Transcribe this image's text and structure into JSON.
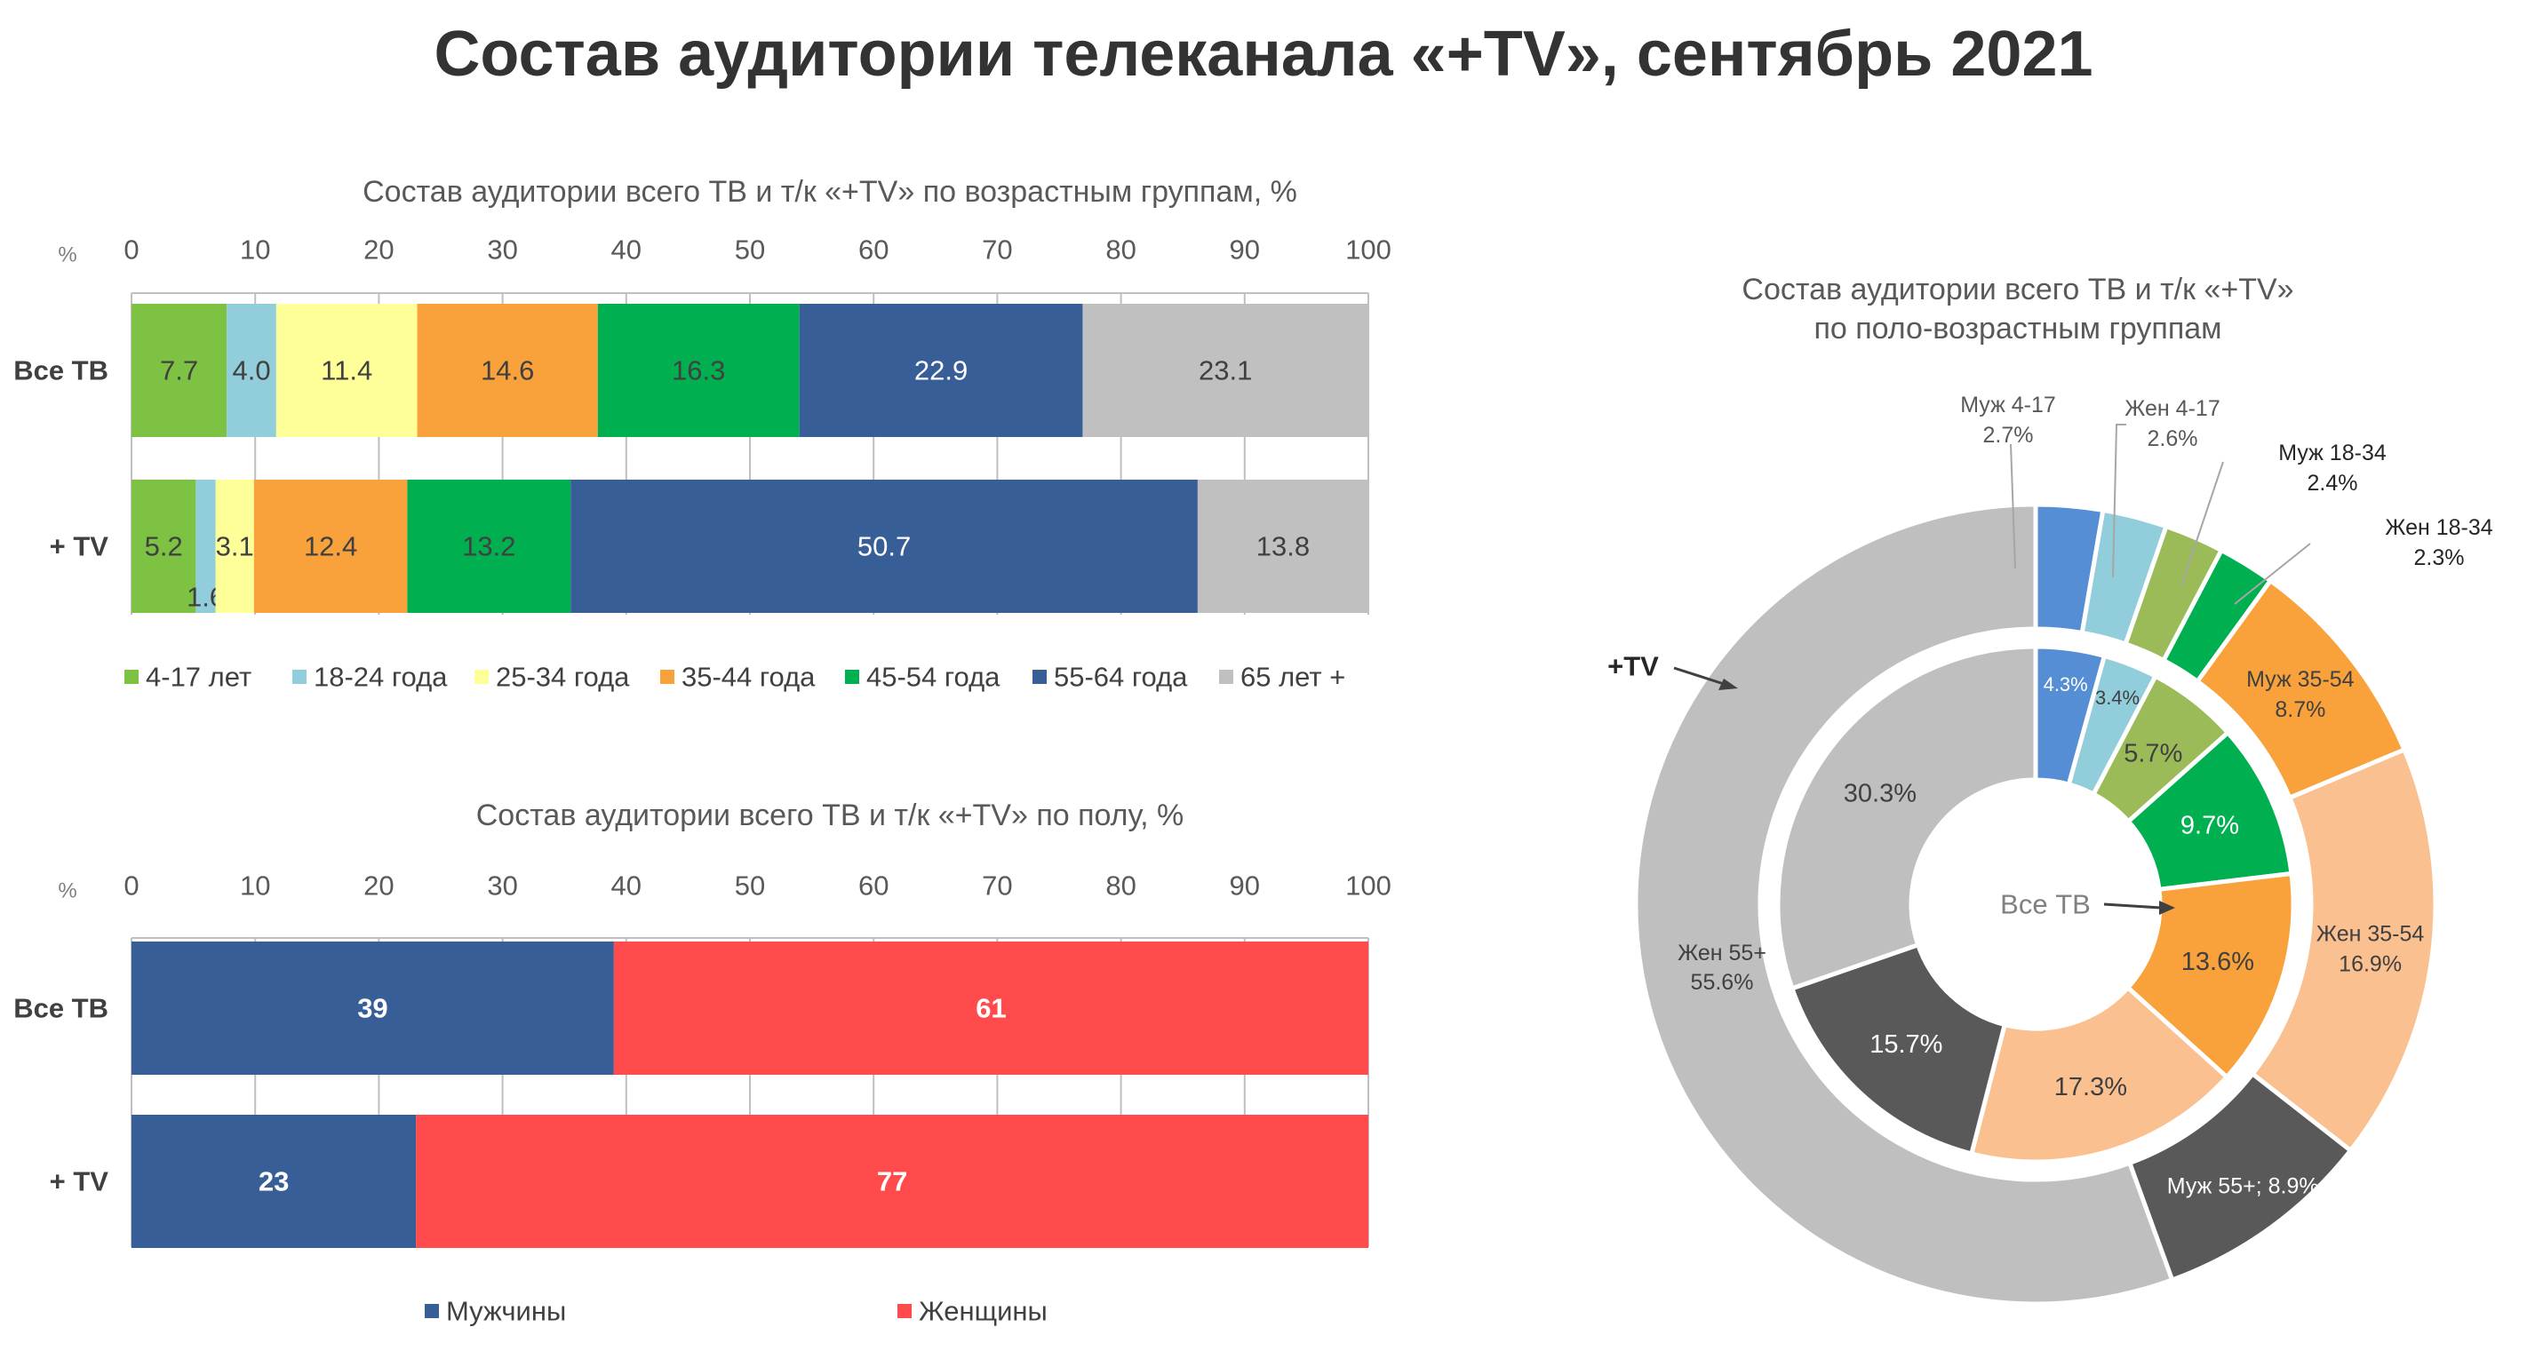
{
  "title": "Состав аудитории телеканала «+TV», сентябрь 2021",
  "chart_data": [
    {
      "type": "bar",
      "orientation": "horizontal-stacked",
      "title": "Состав аудитории всего ТВ и т/к «+TV» по возрастным группам, %",
      "axis_unit_label": "%",
      "xlim": [
        0,
        100
      ],
      "ticks": [
        "0",
        "10",
        "20",
        "30",
        "40",
        "50",
        "60",
        "70",
        "80",
        "90",
        "100"
      ],
      "tick_values": [
        0,
        10,
        20,
        30,
        40,
        50,
        60,
        70,
        80,
        90,
        100
      ],
      "categories": [
        "Все ТВ",
        "+ TV"
      ],
      "legend_position": "bottom",
      "series": [
        {
          "name": "4-17 лет",
          "color": "#7DC242",
          "values": [
            7.7,
            5.2
          ],
          "labels": [
            "7.7",
            "5.2"
          ]
        },
        {
          "name": "18-24 года",
          "color": "#92CDDC",
          "values": [
            4.0,
            1.6
          ],
          "labels": [
            "4.0",
            "1.6"
          ]
        },
        {
          "name": "25-34 года",
          "color": "#FFFF99",
          "values": [
            11.4,
            3.1
          ],
          "labels": [
            "11.4",
            "3.1"
          ]
        },
        {
          "name": "35-44 года",
          "color": "#F9A13A",
          "values": [
            14.6,
            12.4
          ],
          "labels": [
            "14.6",
            "12.4"
          ]
        },
        {
          "name": "45-54 года",
          "color": "#00B050",
          "values": [
            16.3,
            13.2
          ],
          "labels": [
            "16.3",
            "13.2"
          ]
        },
        {
          "name": "55-64 года",
          "color": "#375E97",
          "values": [
            22.9,
            50.7
          ],
          "labels": [
            "22.9",
            "50.7"
          ]
        },
        {
          "name": "65 лет +",
          "color": "#C0C0C0",
          "values": [
            23.1,
            13.8
          ],
          "labels": [
            "23.1",
            "13.8"
          ]
        }
      ]
    },
    {
      "type": "bar",
      "orientation": "horizontal-stacked",
      "title": "Состав аудитории всего ТВ и т/к «+TV» по полу, %",
      "axis_unit_label": "%",
      "xlim": [
        0,
        100
      ],
      "ticks": [
        "0",
        "10",
        "20",
        "30",
        "40",
        "50",
        "60",
        "70",
        "80",
        "90",
        "100"
      ],
      "tick_values": [
        0,
        10,
        20,
        30,
        40,
        50,
        60,
        70,
        80,
        90,
        100
      ],
      "categories": [
        "Все ТВ",
        "+ TV"
      ],
      "legend_position": "bottom",
      "series": [
        {
          "name": "Мужчины",
          "color": "#375E97",
          "values": [
            39,
            23
          ],
          "labels": [
            "39",
            "23"
          ]
        },
        {
          "name": "Женщины",
          "color": "#FF4B4B",
          "values": [
            61,
            77
          ],
          "labels": [
            "61",
            "77"
          ]
        }
      ]
    },
    {
      "type": "pie",
      "variant": "donut-two-ring",
      "title": "Состав аудитории всего ТВ и т/к «+TV» по поло-возрастным группам",
      "inner_ring_label": "Все ТВ",
      "outer_ring_label": "+TV",
      "segments": [
        {
          "name": "Муж 4-17",
          "color": "#558ED5",
          "inner": 4.3,
          "outer": 2.7,
          "inner_label": "4.3%",
          "outer_label_name": "Муж 4-17",
          "outer_label_value": "2.7%"
        },
        {
          "name": "Жен 4-17",
          "color": "#92CDDC",
          "inner": 3.4,
          "outer": 2.6,
          "inner_label": "3.4%",
          "outer_label_name": "Жен 4-17",
          "outer_label_value": "2.6%"
        },
        {
          "name": "Муж 18-34",
          "color": "#9BBB59",
          "inner": 5.7,
          "outer": 2.4,
          "inner_label": "5.7%",
          "outer_label_name": "Муж 18-34",
          "outer_label_value": "2.4%"
        },
        {
          "name": "Жен 18-34",
          "color": "#00B050",
          "inner": 9.7,
          "outer": 2.3,
          "inner_label": "9.7%",
          "outer_label_name": "Жен 18-34",
          "outer_label_value": "2.3%"
        },
        {
          "name": "Муж 35-54",
          "color": "#F9A13A",
          "inner": 13.6,
          "outer": 8.7,
          "inner_label": "13.6%",
          "outer_label_name": "Муж 35-54",
          "outer_label_value": "8.7%"
        },
        {
          "name": "Жен 35-54",
          "color": "#FAC090",
          "inner": 17.3,
          "outer": 16.9,
          "inner_label": "17.3%",
          "outer_label_name": "Жен 35-54",
          "outer_label_value": "16.9%"
        },
        {
          "name": "Муж 55+",
          "color": "#595959",
          "inner": 15.7,
          "outer": 8.9,
          "inner_label": "15.7%",
          "outer_label_name": "Муж 55+;",
          "outer_label_value": "8.9%"
        },
        {
          "name": "Жен 55+",
          "color": "#BFBFBF",
          "inner": 30.3,
          "outer": 55.6,
          "inner_label": "30.3%",
          "outer_label_name": "Жен 55+",
          "outer_label_value": "55.6%"
        }
      ]
    }
  ]
}
